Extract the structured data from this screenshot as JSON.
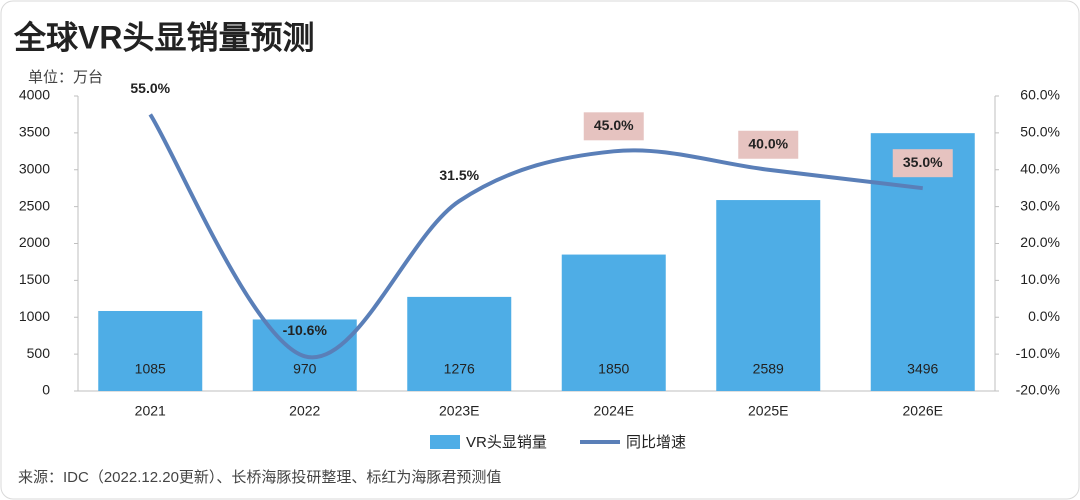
{
  "chart_data": {
    "type": "bar-line",
    "title": "全球VR头显销量预测",
    "y_label": "单位：万台",
    "source": "来源：IDC（2022.12.20更新）、长桥海豚投研整理、标红为海豚君预测值",
    "categories": [
      "2021",
      "2022",
      "2023E",
      "2024E",
      "2025E",
      "2026E"
    ],
    "series": [
      {
        "name": "VR头显销量",
        "color": "#4eade6",
        "type": "bar",
        "values": [
          1085,
          970,
          1276,
          1850,
          2589,
          3496
        ]
      },
      {
        "name": "同比增速",
        "color": "#5a7fb8",
        "type": "line",
        "axis": "y2",
        "values": [
          55.0,
          -10.6,
          31.5,
          45.0,
          40.0,
          35.0
        ],
        "value_labels": [
          "55.0%",
          "-10.6%",
          "31.5%",
          "45.0%",
          "40.0%",
          "35.0%"
        ],
        "label_highlight": [
          false,
          false,
          false,
          true,
          true,
          true
        ],
        "highlight_color": "#e6c3c0"
      }
    ],
    "ylim": [
      0,
      4000
    ],
    "yticks": [
      0,
      500,
      1000,
      1500,
      2000,
      2500,
      3000,
      3500,
      4000
    ],
    "y2lim": [
      -20,
      60
    ],
    "y2ticks": [
      {
        "value": -20,
        "label": "-20.0%"
      },
      {
        "value": -10,
        "label": "-10.0%"
      },
      {
        "value": 0,
        "label": "0.0%"
      },
      {
        "value": 10,
        "label": "10.0%"
      },
      {
        "value": 20,
        "label": "20.0%"
      },
      {
        "value": 30,
        "label": "30.0%"
      },
      {
        "value": 40,
        "label": "40.0%"
      },
      {
        "value": 50,
        "label": "50.0%"
      },
      {
        "value": 60,
        "label": "60.0%"
      }
    ],
    "legend": "bottom"
  }
}
